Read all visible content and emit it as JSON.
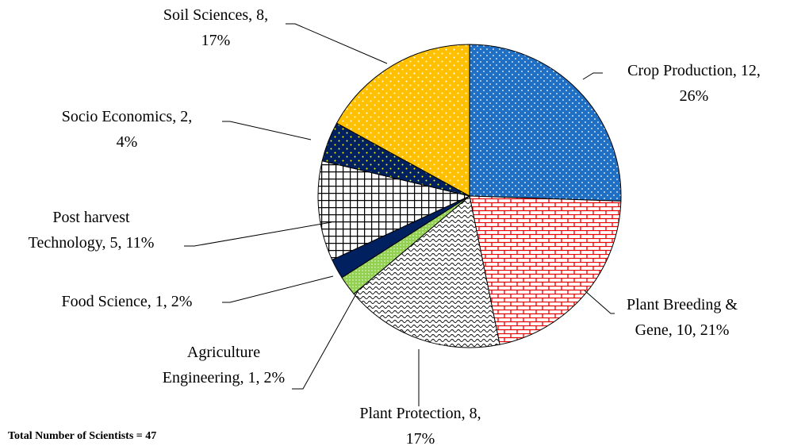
{
  "chart_data": {
    "type": "pie",
    "values": [
      12,
      10,
      8,
      1,
      1,
      5,
      2,
      8
    ],
    "value_labels": [
      "Crop Production, 12,\n26%",
      "Plant Breeding &\nGene, 10, 21%",
      "Plant Protection, 8,\n17%",
      "Agriculture\nEngineering, 1, 2%",
      "Food Science, 1, 2%",
      "Post harvest\nTechnology, 5, 11%",
      "Socio Economics, 2,\n4%",
      "Soil Sciences, 8,\n17%"
    ],
    "colors": [
      "#1f6fc5",
      "#ffffff",
      "#ffffff",
      "#92d050",
      "#002060",
      "#ffffff",
      "#002060",
      "#ffc000"
    ],
    "annotation": "Total Number of Scientists = 47"
  }
}
